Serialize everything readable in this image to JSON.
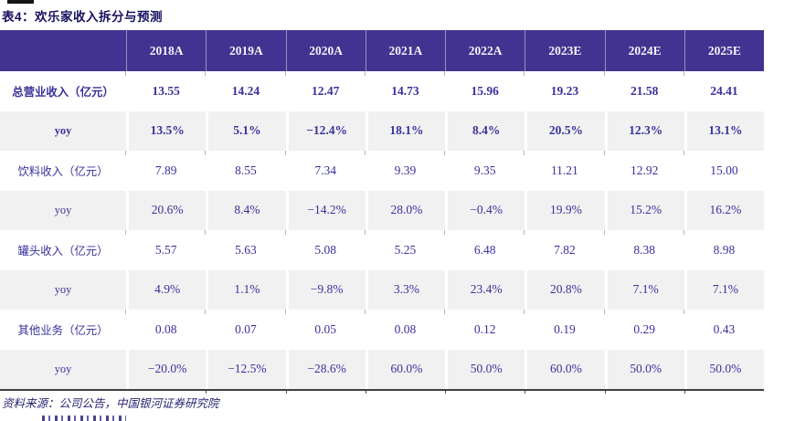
{
  "page": {
    "title": "表4：欢乐家收入拆分与预测",
    "source_note": "资料来源：公司公告，中国银河证券研究院"
  },
  "colors": {
    "header_bg": "#423390",
    "shaded_row_bg": "#f1f1f1",
    "text_accent": "#3a319c",
    "title_color": "#171060"
  },
  "table": {
    "columns": [
      "",
      "2018A",
      "2019A",
      "2020A",
      "2021A",
      "2022A",
      "2023E",
      "2024E",
      "2025E"
    ],
    "rows": [
      {
        "label": "总营业收入（亿元）",
        "bold": true,
        "shaded": false,
        "values": [
          "13.55",
          "14.24",
          "12.47",
          "14.73",
          "15.96",
          "19.23",
          "21.58",
          "24.41"
        ]
      },
      {
        "label": "yoy",
        "bold": true,
        "shaded": true,
        "values": [
          "13.5%",
          "5.1%",
          "−12.4%",
          "18.1%",
          "8.4%",
          "20.5%",
          "12.3%",
          "13.1%"
        ]
      },
      {
        "label": "饮料收入（亿元）",
        "bold": false,
        "shaded": false,
        "values": [
          "7.89",
          "8.55",
          "7.34",
          "9.39",
          "9.35",
          "11.21",
          "12.92",
          "15.00"
        ]
      },
      {
        "label": "yoy",
        "bold": false,
        "shaded": true,
        "values": [
          "20.6%",
          "8.4%",
          "−14.2%",
          "28.0%",
          "−0.4%",
          "19.9%",
          "15.2%",
          "16.2%"
        ]
      },
      {
        "label": "罐头收入（亿元）",
        "bold": false,
        "shaded": false,
        "values": [
          "5.57",
          "5.63",
          "5.08",
          "5.25",
          "6.48",
          "7.82",
          "8.38",
          "8.98"
        ]
      },
      {
        "label": "yoy",
        "bold": false,
        "shaded": true,
        "values": [
          "4.9%",
          "1.1%",
          "−9.8%",
          "3.3%",
          "23.4%",
          "20.8%",
          "7.1%",
          "7.1%"
        ]
      },
      {
        "label": "其他业务（亿元）",
        "bold": false,
        "shaded": false,
        "values": [
          "0.08",
          "0.07",
          "0.05",
          "0.08",
          "0.12",
          "0.19",
          "0.29",
          "0.43"
        ]
      },
      {
        "label": "yoy",
        "bold": false,
        "shaded": true,
        "values": [
          "−20.0%",
          "−12.5%",
          "−28.6%",
          "60.0%",
          "50.0%",
          "60.0%",
          "50.0%",
          "50.0%"
        ]
      }
    ]
  }
}
